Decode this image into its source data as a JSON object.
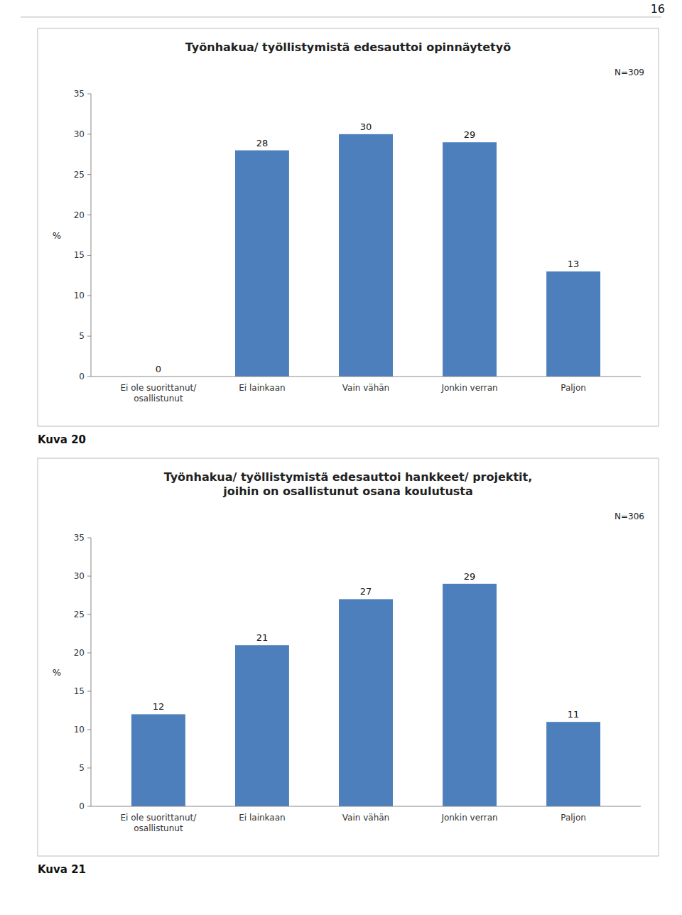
{
  "chart_data": [
    {
      "type": "bar",
      "title": "Työnhakua/ työllistymistä edesauttoi opinnäytetyö",
      "y_label": "%",
      "categories": [
        "Ei ole suorittanut/\nosallistunut",
        "Ei lainkaan",
        "Vain vähän",
        "Jonkin verran",
        "Paljon"
      ],
      "values": [
        0,
        28,
        30,
        29,
        13
      ],
      "color": "#4e7fbd",
      "ylim": [
        0,
        35
      ],
      "yticks": [
        0,
        5,
        10,
        15,
        20,
        25,
        30,
        35
      ],
      "grid": false,
      "data_labels": true,
      "annotations": [
        "N=309",
        "Kuva 20",
        "16"
      ]
    },
    {
      "type": "bar",
      "title": "Työnhakua/ työllistymistä edesauttoi hankkeet/ projektit,\njoihin on osallistunut osana koulutusta",
      "y_label": "%",
      "categories": [
        "Ei ole suorittanut/\nosallistunut",
        "Ei lainkaan",
        "Vain vähän",
        "Jonkin verran",
        "Paljon"
      ],
      "values": [
        12,
        21,
        27,
        29,
        11
      ],
      "color": "#4e7fbd",
      "ylim": [
        0,
        35
      ],
      "yticks": [
        0,
        5,
        10,
        15,
        20,
        25,
        30,
        35
      ],
      "grid": false,
      "data_labels": true,
      "annotations": [
        "N=306",
        "Kuva 21"
      ]
    }
  ]
}
